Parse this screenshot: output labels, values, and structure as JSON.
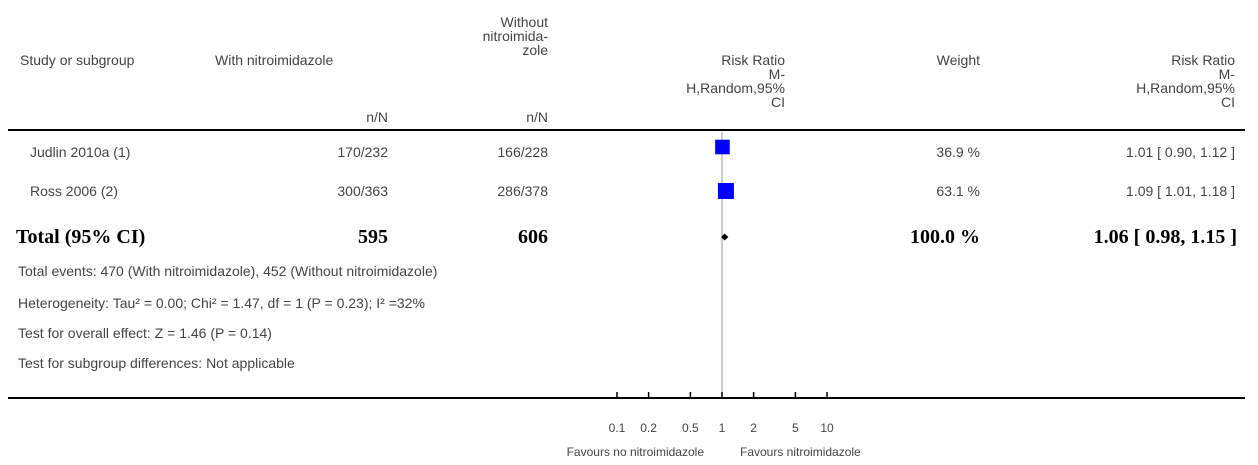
{
  "headers": {
    "study": "Study or subgroup",
    "with": "With nitroimidazole",
    "without_lines": [
      "Without",
      "nitroimida-",
      "zole"
    ],
    "with_sub": "n/N",
    "without_sub": "n/N",
    "rr_lines": [
      "Risk Ratio",
      "M-",
      "H,Random,95%",
      "CI"
    ],
    "weight": "Weight",
    "rr2_lines": [
      "Risk Ratio",
      "M-",
      "H,Random,95%",
      "CI"
    ]
  },
  "studies": [
    {
      "name": "Judlin 2010a (1)",
      "with": "170/232",
      "without": "166/228",
      "weight": "36.9 %",
      "ci_text": "1.01 [ 0.90, 1.12 ]"
    },
    {
      "name": "Ross 2006 (2)",
      "with": "300/363",
      "without": "286/378",
      "weight": "63.1 %",
      "ci_text": "1.09 [ 1.01, 1.18 ]"
    }
  ],
  "total": {
    "label": "Total (95% CI)",
    "with": "595",
    "without": "606",
    "weight": "100.0 %",
    "ci_text": "1.06 [ 0.98, 1.15 ]"
  },
  "footnotes": [
    "Total events: 470 (With nitroimidazole), 452 (Without nitroimidazole)",
    "Heterogeneity: Tau² = 0.00; Chi² = 1.47, df = 1 (P = 0.23); I² =32%",
    "Test for overall effect: Z = 1.46 (P = 0.14)",
    "Test for subgroup differences: Not applicable"
  ],
  "axis": {
    "ticks": [
      "0.1",
      "0.2",
      "0.5",
      "1",
      "2",
      "5",
      "10"
    ],
    "favours_left": "Favours no nitroimidazole",
    "favours_right": "Favours nitroimidazole"
  },
  "colors": {
    "square": "#0000ff",
    "diamond": "#000000",
    "line": "#000000"
  },
  "chart_data": {
    "type": "forest",
    "scale": "log",
    "null_value": 1,
    "xlim": [
      0.1,
      10
    ],
    "ticks": [
      0.1,
      0.2,
      0.5,
      1,
      2,
      5,
      10
    ],
    "studies": [
      {
        "name": "Judlin 2010a (1)",
        "rr": 1.01,
        "ci": [
          0.9,
          1.12
        ],
        "weight": 36.9
      },
      {
        "name": "Ross 2006 (2)",
        "rr": 1.09,
        "ci": [
          1.01,
          1.18
        ],
        "weight": 63.1
      }
    ],
    "pooled": {
      "rr": 1.06,
      "ci": [
        0.98,
        1.15
      ],
      "weight": 100.0
    }
  }
}
